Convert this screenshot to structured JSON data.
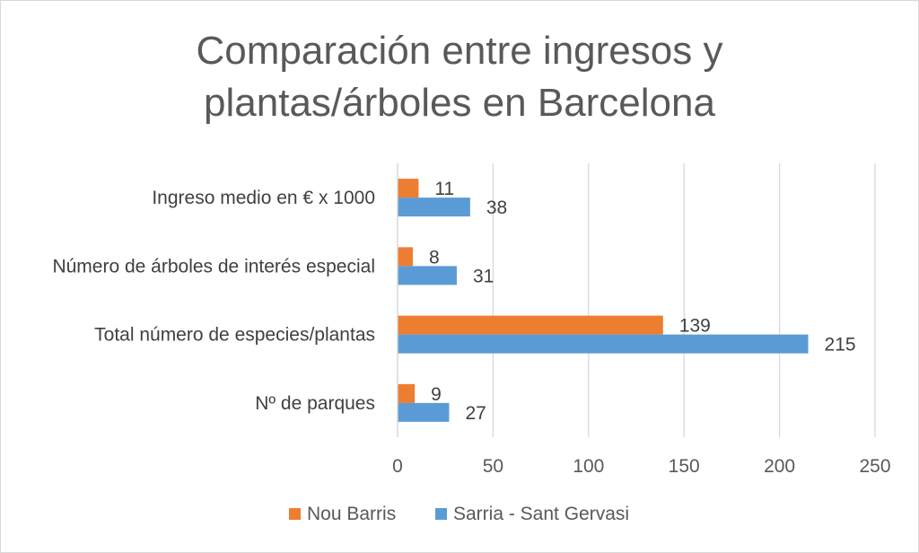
{
  "chart_data": {
    "type": "bar",
    "orientation": "horizontal",
    "title_lines": [
      "Comparación entre ingresos y",
      "plantas/árboles en Barcelona"
    ],
    "categories": [
      "Ingreso medio en € x 1000",
      "Número de árboles de interés especial",
      "Total número de especies/plantas",
      "Nº de parques"
    ],
    "series": [
      {
        "name": "Nou Barris",
        "color": "#ED7D31",
        "values": [
          11,
          8,
          139,
          9
        ]
      },
      {
        "name": "Sarria - Sant Gervasi",
        "color": "#5B9BD5",
        "values": [
          38,
          31,
          215,
          27
        ]
      }
    ],
    "xlim": [
      0,
      250
    ],
    "xticks": [
      0,
      50,
      100,
      150,
      200,
      250
    ],
    "grid": true,
    "legend_position": "bottom",
    "data_labels": true
  }
}
